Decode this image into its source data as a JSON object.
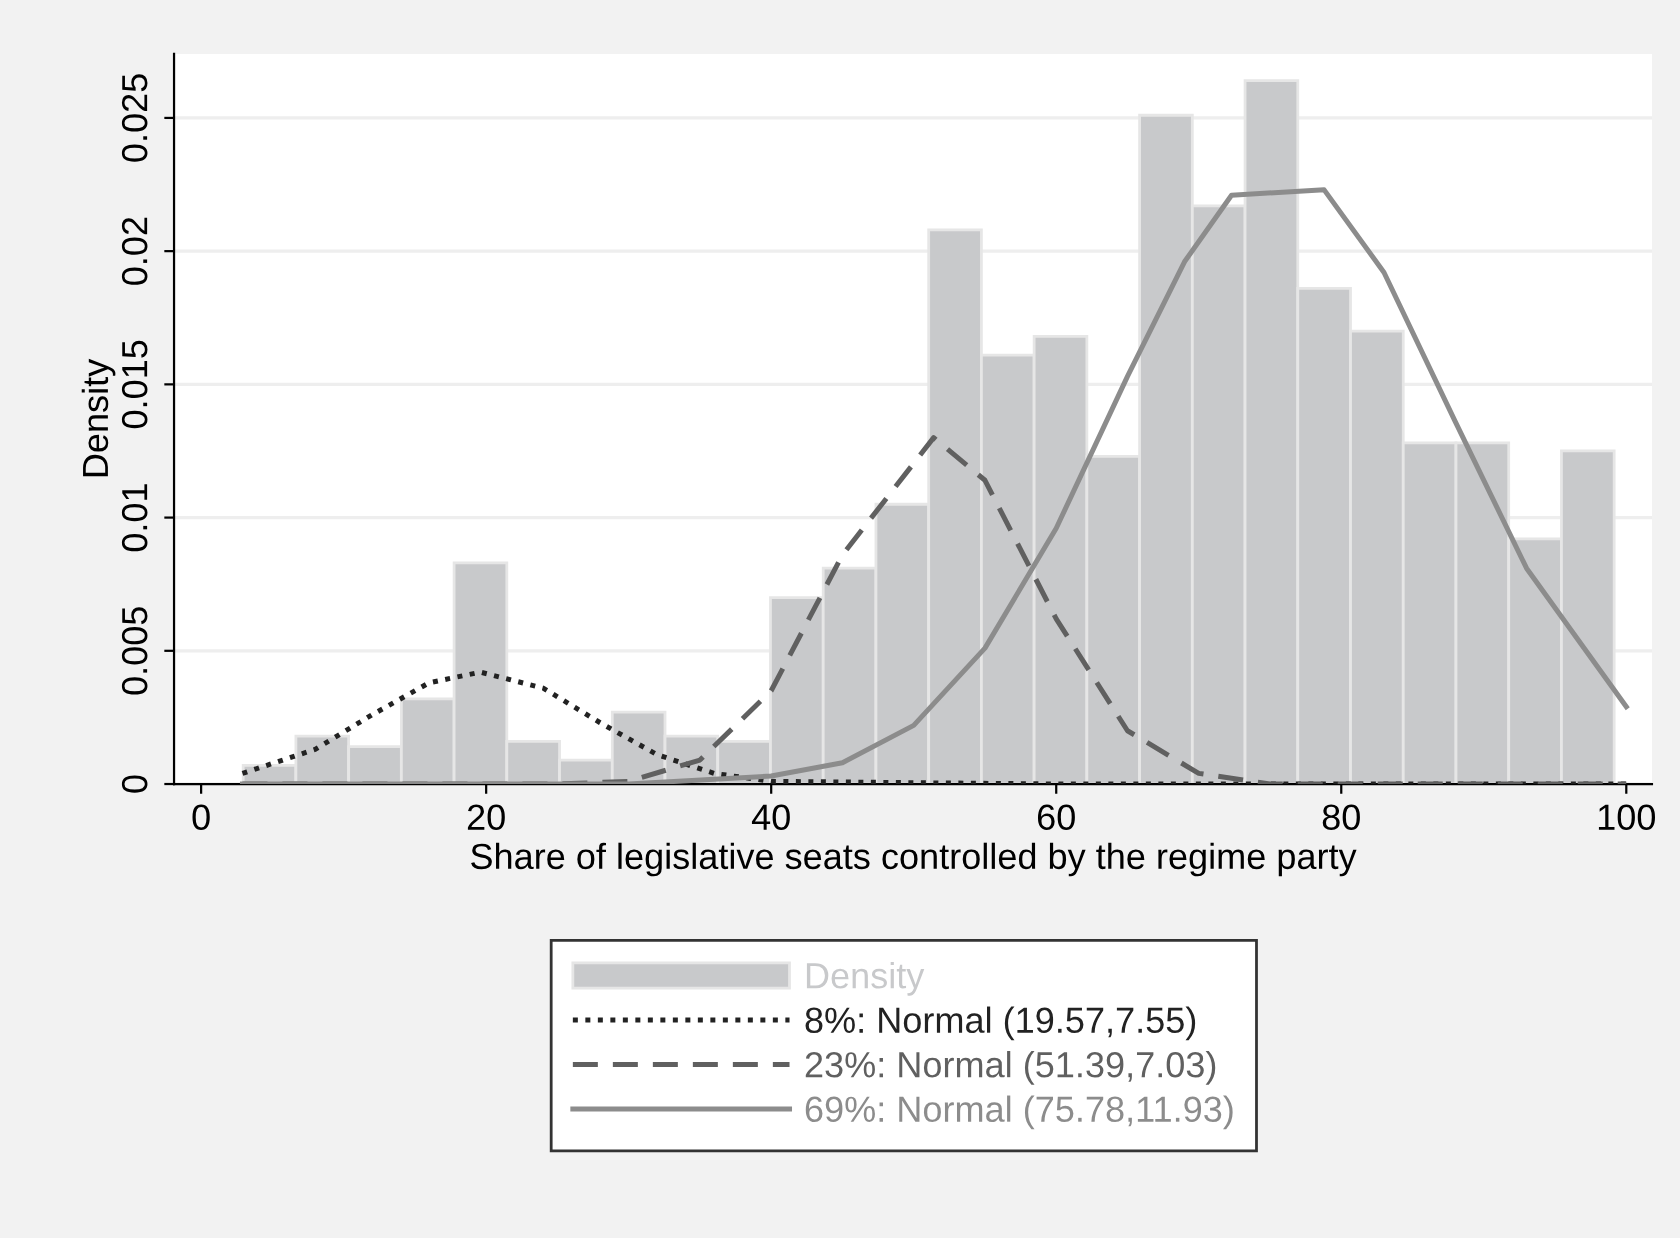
{
  "chart_data": {
    "type": "histogram",
    "xlabel": "Share of legislative seats controlled by the regime party",
    "ylabel": "Density",
    "xlim": [
      -1.9,
      101.8
    ],
    "xticks": [
      0,
      20,
      40,
      60,
      80,
      100
    ],
    "ylim": [
      0,
      0.0274
    ],
    "yticks": [
      {
        "value": 0,
        "label": "0"
      },
      {
        "value": 0.005,
        "label": "0.005"
      },
      {
        "value": 0.01,
        "label": "0.01"
      },
      {
        "value": 0.015,
        "label": "0.015"
      },
      {
        "value": 0.02,
        "label": "0.02"
      },
      {
        "value": 0.025,
        "label": "0.025"
      }
    ],
    "grid": "y",
    "legend": "bottom",
    "series": [
      {
        "name": "Density",
        "color": "#c8c9cb",
        "bins": [
          2.95,
          6.65,
          10.35,
          14.05,
          17.75,
          21.45,
          25.15,
          28.85,
          32.55,
          36.25,
          39.95,
          43.65,
          47.35,
          51.05,
          54.75,
          58.45,
          62.15,
          65.85,
          69.55,
          73.25,
          76.95,
          80.65,
          84.35,
          88.05,
          91.75,
          95.45,
          99.15
        ],
        "values": [
          0.0007,
          0.0018,
          0.0014,
          0.0032,
          0.0083,
          0.0016,
          0.0009,
          0.0027,
          0.0018,
          0.0016,
          0.007,
          0.0081,
          0.0105,
          0.0208,
          0.0161,
          0.0168,
          0.0123,
          0.0251,
          0.0217,
          0.0264,
          0.0186,
          0.017,
          0.0128,
          0.0128,
          0.0092,
          0.0125
        ]
      },
      {
        "type": "line",
        "name": "8%: Normal (19.57,7.55)",
        "color": "#222222",
        "line_style": "dotted",
        "x": [
          2.9,
          8,
          12,
          16,
          19.6,
          24,
          28,
          32,
          36,
          40,
          60,
          100
        ],
        "values": [
          0.0004,
          0.0013,
          0.0026,
          0.0038,
          0.0042,
          0.0036,
          0.0023,
          0.0011,
          0.0004,
          0.0001,
          0,
          0
        ]
      },
      {
        "type": "line",
        "name": "23%: Normal (51.39,7.03)",
        "color": "#606060",
        "line_style": "dashed",
        "x": [
          2.9,
          25,
          30,
          35,
          40,
          45,
          51.4,
          55,
          60,
          65,
          70,
          75,
          100
        ],
        "values": [
          0,
          0,
          0.0001,
          0.0009,
          0.0035,
          0.0086,
          0.013,
          0.0114,
          0.0062,
          0.002,
          0.0004,
          0,
          0
        ]
      },
      {
        "type": "line",
        "name": "69%: Normal (75.78,11.93)",
        "color": "#8c8c8c",
        "line_style": "solid",
        "x": [
          2.9,
          30,
          40,
          45,
          50,
          55,
          60,
          65,
          69,
          72.3,
          78.8,
          83,
          88,
          93,
          100
        ],
        "values": [
          0,
          0,
          0.0003,
          0.0008,
          0.0022,
          0.0051,
          0.0096,
          0.0153,
          0.0196,
          0.0221,
          0.0223,
          0.0192,
          0.0136,
          0.0081,
          0.0029
        ]
      }
    ]
  }
}
